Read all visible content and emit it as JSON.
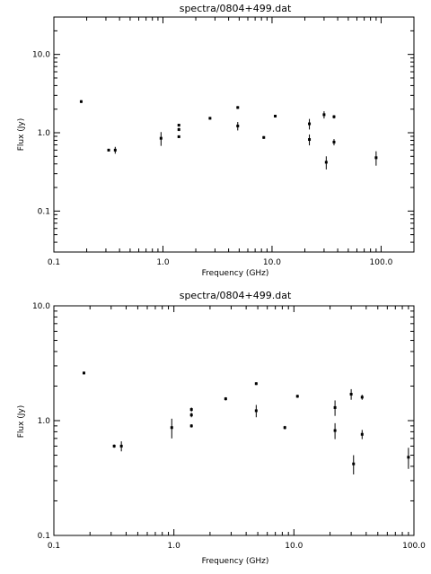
{
  "chart_data": [
    {
      "type": "scatter",
      "title": "spectra/0804+499.dat",
      "xlabel": "Frequency (GHz)",
      "ylabel": "Flux (Jy)",
      "xscale": "log",
      "yscale": "log",
      "xlim": [
        0.1,
        200
      ],
      "ylim": [
        0.03,
        30
      ],
      "xticks": [
        {
          "value": 0.1,
          "label": "0.1"
        },
        {
          "value": 1,
          "label": "1.0"
        },
        {
          "value": 10,
          "label": "10.0"
        },
        {
          "value": 100,
          "label": "100.0"
        }
      ],
      "yticks": [
        {
          "value": 0.1,
          "label": "0.1"
        },
        {
          "value": 1,
          "label": "1.0"
        },
        {
          "value": 10,
          "label": "10.0"
        }
      ],
      "grid": false,
      "points": [
        {
          "x": 0.178,
          "y": 2.5,
          "err": 0.05
        },
        {
          "x": 0.318,
          "y": 0.6,
          "err": 0.02
        },
        {
          "x": 0.365,
          "y": 0.6,
          "err": 0.06
        },
        {
          "x": 0.96,
          "y": 0.85,
          "err": 0.17
        },
        {
          "x": 1.4,
          "y": 1.25,
          "err": 0.05
        },
        {
          "x": 1.4,
          "y": 1.1,
          "err": 0.05
        },
        {
          "x": 1.4,
          "y": 0.89,
          "err": 0.03
        },
        {
          "x": 2.7,
          "y": 1.53,
          "err": 0.05
        },
        {
          "x": 4.85,
          "y": 2.1,
          "err": 0.05
        },
        {
          "x": 4.85,
          "y": 1.22,
          "err": 0.15
        },
        {
          "x": 8.4,
          "y": 0.87,
          "err": 0.03
        },
        {
          "x": 10.7,
          "y": 1.63,
          "err": 0.05
        },
        {
          "x": 22,
          "y": 1.3,
          "err": 0.2
        },
        {
          "x": 22,
          "y": 0.82,
          "err": 0.13
        },
        {
          "x": 30,
          "y": 1.7,
          "err": 0.18
        },
        {
          "x": 31.4,
          "y": 0.42,
          "err": 0.08
        },
        {
          "x": 37,
          "y": 1.6,
          "err": 0.08
        },
        {
          "x": 37,
          "y": 0.76,
          "err": 0.07
        },
        {
          "x": 90,
          "y": 0.48,
          "err": 0.1
        }
      ]
    },
    {
      "type": "scatter",
      "title": "spectra/0804+499.dat",
      "xlabel": "Frequency (GHz)",
      "ylabel": "Flux (Jy)",
      "xscale": "log",
      "yscale": "log",
      "xlim": [
        0.1,
        100
      ],
      "ylim": [
        0.1,
        10
      ],
      "xticks": [
        {
          "value": 0.1,
          "label": "0.1"
        },
        {
          "value": 1,
          "label": "1.0"
        },
        {
          "value": 10,
          "label": "10.0"
        },
        {
          "value": 100,
          "label": "100.0"
        }
      ],
      "yticks": [
        {
          "value": 0.1,
          "label": "0.1"
        },
        {
          "value": 1,
          "label": "1.0"
        },
        {
          "value": 10,
          "label": "10.0"
        }
      ],
      "grid": false,
      "points": [
        {
          "x": 0.178,
          "y": 2.6,
          "err": 0.05
        },
        {
          "x": 0.318,
          "y": 0.6,
          "err": 0.02
        },
        {
          "x": 0.365,
          "y": 0.6,
          "err": 0.06
        },
        {
          "x": 0.96,
          "y": 0.87,
          "err": 0.17
        },
        {
          "x": 1.4,
          "y": 1.25,
          "err": 0.05
        },
        {
          "x": 1.4,
          "y": 1.12,
          "err": 0.05
        },
        {
          "x": 1.4,
          "y": 0.9,
          "err": 0.03
        },
        {
          "x": 2.7,
          "y": 1.55,
          "err": 0.05
        },
        {
          "x": 4.85,
          "y": 2.1,
          "err": 0.05
        },
        {
          "x": 4.85,
          "y": 1.22,
          "err": 0.15
        },
        {
          "x": 8.4,
          "y": 0.87,
          "err": 0.03
        },
        {
          "x": 10.7,
          "y": 1.63,
          "err": 0.05
        },
        {
          "x": 22,
          "y": 1.3,
          "err": 0.2
        },
        {
          "x": 22,
          "y": 0.82,
          "err": 0.13
        },
        {
          "x": 30,
          "y": 1.7,
          "err": 0.18
        },
        {
          "x": 31.4,
          "y": 0.42,
          "err": 0.08
        },
        {
          "x": 37,
          "y": 1.6,
          "err": 0.08
        },
        {
          "x": 37,
          "y": 0.76,
          "err": 0.07
        },
        {
          "x": 90,
          "y": 0.48,
          "err": 0.1
        }
      ]
    }
  ]
}
